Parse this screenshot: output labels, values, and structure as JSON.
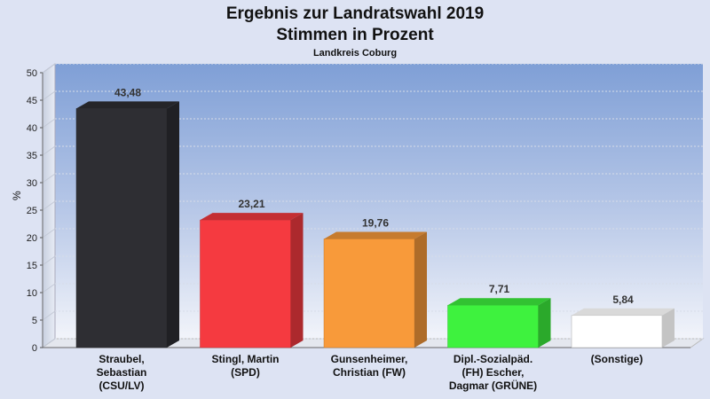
{
  "chart_data": {
    "type": "bar",
    "title": "Ergebnis zur Landratswahl 2019",
    "title_line2": "Stimmen in Prozent",
    "subtitle": "Landkreis Coburg",
    "ylabel": "%",
    "ylim": [
      0,
      50
    ],
    "yticks": [
      "0",
      "5",
      "10",
      "15",
      "20",
      "25",
      "30",
      "35",
      "40",
      "45",
      "50"
    ],
    "categories": [
      [
        "Straubel,",
        "Sebastian",
        "(CSU/LV)"
      ],
      [
        "Stingl, Martin",
        "(SPD)"
      ],
      [
        "Gunsenheimer,",
        "Christian (FW)"
      ],
      [
        "Dipl.-Sozialpäd.",
        "(FH) Escher,",
        "Dagmar (GRÜNE)"
      ],
      [
        "(Sonstige)"
      ]
    ],
    "values": [
      43.48,
      23.21,
      19.76,
      7.71,
      5.84
    ],
    "value_labels": [
      "43,48",
      "23,21",
      "19,76",
      "7,71",
      "5,84"
    ],
    "colors": [
      "#2e2e33",
      "#f53a40",
      "#f89a3a",
      "#3ef23e",
      "#ffffff"
    ],
    "grid": true
  }
}
